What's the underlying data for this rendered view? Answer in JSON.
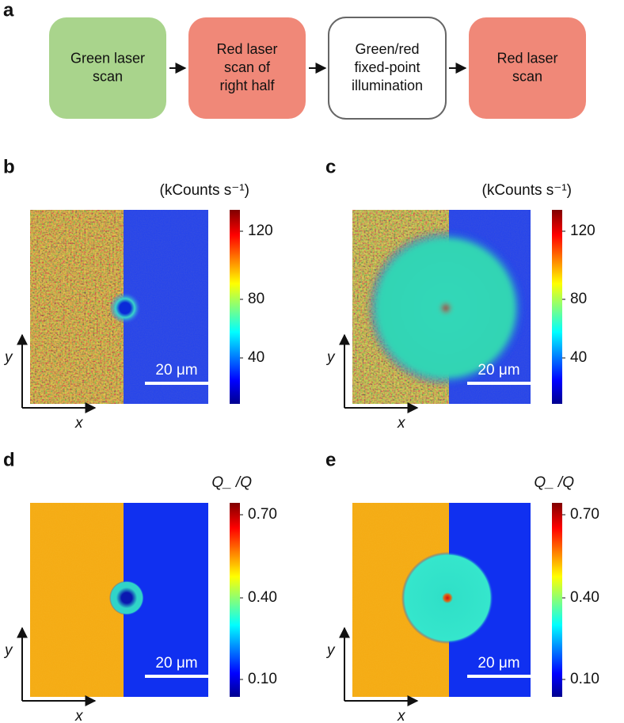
{
  "panel_a": {
    "label": "a",
    "boxes": [
      {
        "lines": [
          "Green laser",
          "scan"
        ]
      },
      {
        "lines": [
          "Red laser",
          "scan of",
          "right half"
        ]
      },
      {
        "lines": [
          "Green/red",
          "fixed-point",
          "illumination"
        ]
      },
      {
        "lines": [
          "Red laser",
          "scan"
        ]
      }
    ]
  },
  "panels": [
    {
      "label": "b",
      "unit": "(kCounts s⁻¹)",
      "colorbar_ticks": [
        "120",
        "80",
        "40"
      ],
      "scale_bar": "20 μm",
      "x_axis": "x",
      "y_axis": "y"
    },
    {
      "label": "c",
      "unit": "(kCounts s⁻¹)",
      "colorbar_ticks": [
        "120",
        "80",
        "40"
      ],
      "scale_bar": "20 μm",
      "x_axis": "x",
      "y_axis": "y"
    },
    {
      "label": "d",
      "unit": "Q_ /Q",
      "colorbar_ticks": [
        "0.70",
        "0.40",
        "0.10"
      ],
      "scale_bar": "20 μm",
      "x_axis": "x",
      "y_axis": "y"
    },
    {
      "label": "e",
      "unit": "Q_ /Q",
      "colorbar_ticks": [
        "0.70",
        "0.40",
        "0.10"
      ],
      "scale_bar": "20 μm",
      "x_axis": "x",
      "y_axis": "y"
    }
  ]
}
